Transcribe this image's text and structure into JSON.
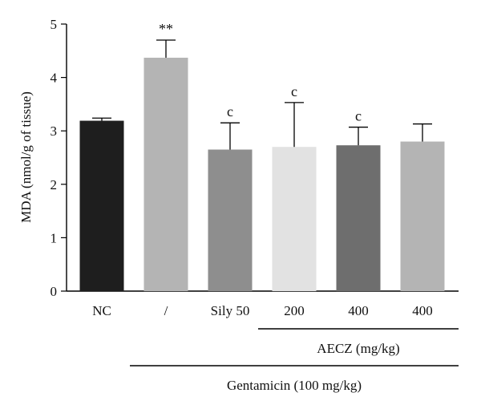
{
  "chart_data": {
    "type": "bar",
    "title": "",
    "ylabel": "MDA (nmol/g of tissue)",
    "xlabel": "",
    "ylim": [
      0,
      5
    ],
    "yticks": [
      0,
      1,
      2,
      3,
      4,
      5
    ],
    "grid": false,
    "categories": [
      "NC",
      "/",
      "Sily 50",
      "200",
      "400",
      "400"
    ],
    "values": [
      3.19,
      4.37,
      2.65,
      2.7,
      2.73,
      2.8
    ],
    "errors": [
      0.05,
      0.33,
      0.5,
      0.83,
      0.34,
      0.33
    ],
    "annotations": [
      "",
      "**",
      "c",
      "c",
      "c",
      ""
    ],
    "colors": [
      "#1e1e1e",
      "#b4b4b4",
      "#8e8e8e",
      "#e2e2e2",
      "#6e6e6e",
      "#b4b4b4"
    ],
    "groups": [
      {
        "label": "AECZ (mg/kg)",
        "from_index": 3,
        "to_index": 5
      },
      {
        "label": "Gentamicin (100 mg/kg)",
        "from_index": 1,
        "to_index": 5
      }
    ]
  }
}
